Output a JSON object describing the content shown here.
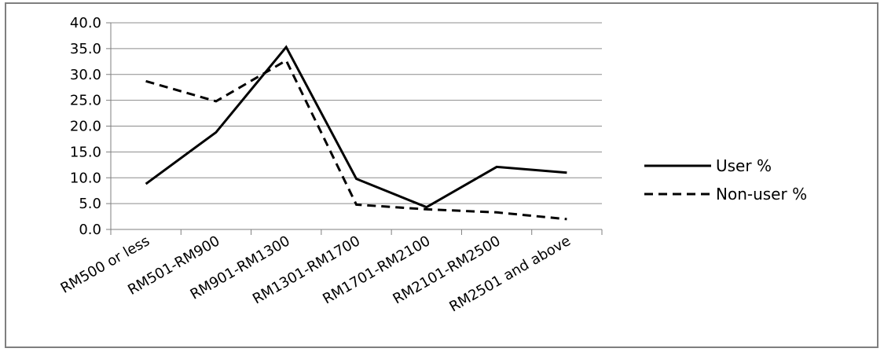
{
  "chart_data": {
    "type": "line",
    "categories": [
      "RM500 or less",
      "RM501-RM900",
      "RM901-RM1300",
      "RM1301-RM1700",
      "RM1701-RM2100",
      "RM2101-RM2500",
      "RM2501 and above"
    ],
    "series": [
      {
        "name": "User %",
        "values": [
          8.8,
          18.8,
          35.3,
          9.8,
          4.3,
          12.1,
          11.0
        ],
        "style": "solid",
        "color": "#000000"
      },
      {
        "name": "Non-user %",
        "values": [
          28.7,
          24.8,
          32.7,
          4.8,
          3.9,
          3.3,
          2.0
        ],
        "style": "dashed",
        "color": "#000000"
      }
    ],
    "yticks": [
      "0.0",
      "5.0",
      "10.0",
      "15.0",
      "20.0",
      "25.0",
      "30.0",
      "35.0",
      "40.0"
    ],
    "ylim": [
      0,
      40
    ],
    "title": "",
    "xlabel": "",
    "ylabel": "",
    "grid": "horizontal",
    "legend_position": "right",
    "colors": {
      "gridline": "#8c8c8c",
      "axis": "#7f7f7f",
      "border": "#7f7f7f"
    }
  }
}
